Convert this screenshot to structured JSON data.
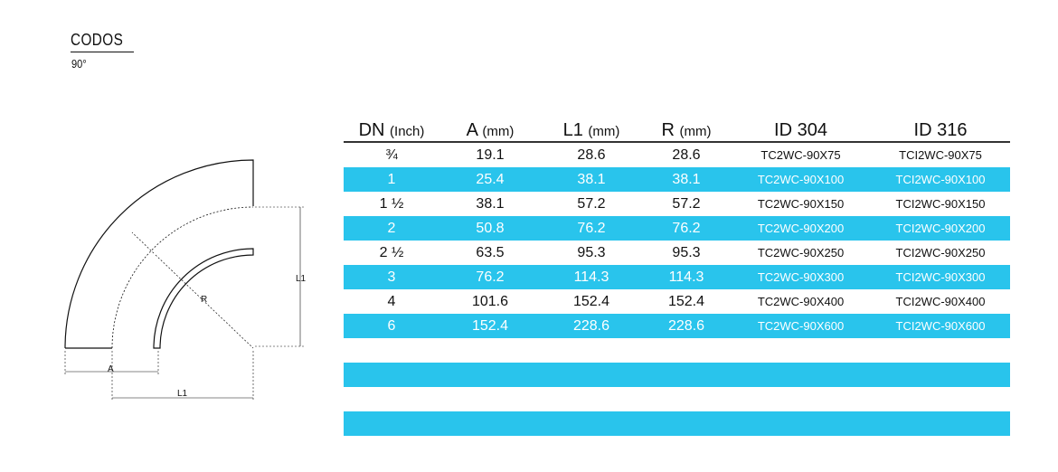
{
  "title": "CODOS",
  "subtitle": "90°",
  "drawing": {
    "labels": {
      "a": "A",
      "l1_bottom": "L1",
      "l1_right": "L1",
      "r": "R"
    }
  },
  "table": {
    "headers": [
      {
        "main": "DN",
        "unit": "(Inch)"
      },
      {
        "main": "A",
        "unit": "(mm)"
      },
      {
        "main": "L1",
        "unit": "(mm)"
      },
      {
        "main": "R",
        "unit": "(mm)"
      },
      {
        "main": "ID 304",
        "unit": ""
      },
      {
        "main": "ID 316",
        "unit": ""
      }
    ],
    "rows": [
      {
        "dn": "¾",
        "a": "19.1",
        "l1": "28.6",
        "r": "28.6",
        "id304": "TC2WC-90X75",
        "id316": "TCI2WC-90X75"
      },
      {
        "dn": "1",
        "a": "25.4",
        "l1": "38.1",
        "r": "38.1",
        "id304": "TC2WC-90X100",
        "id316": "TCI2WC-90X100"
      },
      {
        "dn": "1 ½",
        "a": "38.1",
        "l1": "57.2",
        "r": "57.2",
        "id304": "TC2WC-90X150",
        "id316": "TCI2WC-90X150"
      },
      {
        "dn": "2",
        "a": "50.8",
        "l1": "76.2",
        "r": "76.2",
        "id304": "TC2WC-90X200",
        "id316": "TCI2WC-90X200"
      },
      {
        "dn": "2 ½",
        "a": "63.5",
        "l1": "95.3",
        "r": "95.3",
        "id304": "TC2WC-90X250",
        "id316": "TCI2WC-90X250"
      },
      {
        "dn": "3",
        "a": "76.2",
        "l1": "114.3",
        "r": "114.3",
        "id304": "TC2WC-90X300",
        "id316": "TCI2WC-90X300"
      },
      {
        "dn": "4",
        "a": "101.6",
        "l1": "152.4",
        "r": "152.4",
        "id304": "TC2WC-90X400",
        "id316": "TCI2WC-90X400"
      },
      {
        "dn": "6",
        "a": "152.4",
        "l1": "228.6",
        "r": "228.6",
        "id304": "TC2WC-90X600",
        "id316": "TCI2WC-90X600"
      }
    ]
  },
  "colors": {
    "band": "#29c4ec",
    "text": "#111111",
    "background": "#ffffff"
  }
}
